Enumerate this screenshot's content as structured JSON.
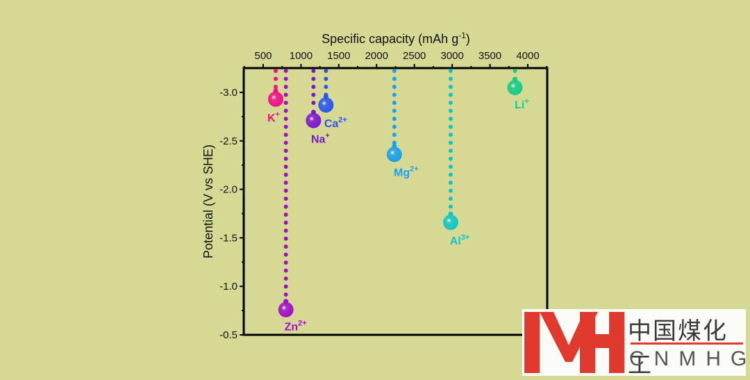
{
  "chart_data": {
    "type": "scatter",
    "title": "",
    "xlabel": "Specific capacity (mAh g",
    "xlabel_sup": "-1",
    "xlabel_end": ")",
    "ylabel": "Potential (V vs SHE)",
    "xlim": [
      240,
      4260
    ],
    "ylim": [
      -3.25,
      -0.5
    ],
    "y_reversed": true,
    "x_axis_position": "top",
    "grid": false,
    "x_ticks": [
      500,
      1000,
      1500,
      2000,
      2500,
      3000,
      3500,
      4000
    ],
    "x_tick_labels": [
      "500",
      "1000",
      "1500",
      "2000",
      "2500",
      "3000",
      "3500",
      "4000"
    ],
    "y_ticks": [
      -3.0,
      -2.5,
      -2.0,
      -1.5,
      -1.0,
      -0.5
    ],
    "y_tick_labels": [
      "-3.0",
      "-2.5",
      "-2.0",
      "-1.5",
      "-1.0",
      "-0.5"
    ],
    "points": [
      {
        "name": "K",
        "sup": "+",
        "x": 665,
        "y": -2.93,
        "color": "#ee1188"
      },
      {
        "name": "Zn",
        "sup": "2+",
        "x": 800,
        "y": -0.76,
        "color": "#a010c8"
      },
      {
        "name": "Na",
        "sup": "+",
        "x": 1165,
        "y": -2.71,
        "color": "#7a18d0"
      },
      {
        "name": "Ca",
        "sup": "2+",
        "x": 1330,
        "y": -2.87,
        "color": "#2a55ee"
      },
      {
        "name": "Mg",
        "sup": "2+",
        "x": 2235,
        "y": -2.36,
        "color": "#1aa0ee"
      },
      {
        "name": "Al",
        "sup": "3+",
        "x": 2980,
        "y": -1.66,
        "color": "#14c4c4"
      },
      {
        "name": "Li",
        "sup": "+",
        "x": 3830,
        "y": -3.05,
        "color": "#16cc88"
      }
    ]
  },
  "logo": {
    "mark": "MH",
    "name_cn": "中国煤化工",
    "name_en": "CNMHG",
    "color": "#e03a2e"
  }
}
